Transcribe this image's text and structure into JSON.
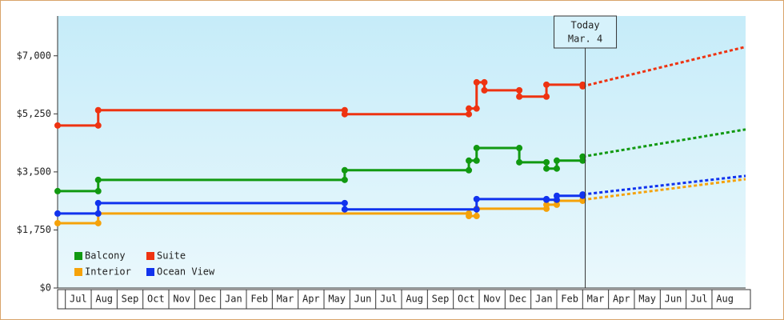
{
  "chart_data": {
    "type": "step-line",
    "ylim": [
      0,
      8200
    ],
    "yticks": [
      {
        "value": 0,
        "label": "$0"
      },
      {
        "value": 1750,
        "label": "$1,750"
      },
      {
        "value": 3500,
        "label": "$3,500"
      },
      {
        "value": 5250,
        "label": "$5,250"
      },
      {
        "value": 7000,
        "label": "$7,000"
      }
    ],
    "xlim": [
      -0.3,
      26.3
    ],
    "xticks": [
      {
        "value": 0.5,
        "label": "Jul"
      },
      {
        "value": 1.5,
        "label": "Aug"
      },
      {
        "value": 2.5,
        "label": "Sep"
      },
      {
        "value": 3.5,
        "label": "Oct"
      },
      {
        "value": 4.5,
        "label": "Nov"
      },
      {
        "value": 5.5,
        "label": "Dec"
      },
      {
        "value": 6.5,
        "label": "Jan"
      },
      {
        "value": 7.5,
        "label": "Feb"
      },
      {
        "value": 8.5,
        "label": "Mar"
      },
      {
        "value": 9.5,
        "label": "Apr"
      },
      {
        "value": 10.5,
        "label": "May"
      },
      {
        "value": 11.5,
        "label": "Jun"
      },
      {
        "value": 12.5,
        "label": "Jul"
      },
      {
        "value": 13.5,
        "label": "Aug"
      },
      {
        "value": 14.5,
        "label": "Sep"
      },
      {
        "value": 15.5,
        "label": "Oct"
      },
      {
        "value": 16.5,
        "label": "Nov"
      },
      {
        "value": 17.5,
        "label": "Dec"
      },
      {
        "value": 18.5,
        "label": "Jan"
      },
      {
        "value": 19.5,
        "label": "Feb"
      },
      {
        "value": 20.5,
        "label": "Mar"
      },
      {
        "value": 21.5,
        "label": "Apr"
      },
      {
        "value": 22.5,
        "label": "May"
      },
      {
        "value": 23.5,
        "label": "Jun"
      },
      {
        "value": 24.5,
        "label": "Jul"
      },
      {
        "value": 25.5,
        "label": "Aug"
      }
    ],
    "today": {
      "x": 20.1,
      "label": [
        "Today",
        "Mar. 4"
      ]
    },
    "series": [
      {
        "name": "Balcony",
        "color": "#119911",
        "x": [
          -0.3,
          1.27,
          10.8,
          15.6,
          15.9,
          17.55,
          18.6,
          19.0,
          20.0
        ],
        "values": [
          2920,
          3260,
          3550,
          3840,
          4220,
          3790,
          3600,
          3840,
          3960
        ],
        "forecast": {
          "x": [
            20.0,
            26.3
          ],
          "values": [
            3960,
            4780
          ]
        }
      },
      {
        "name": "Suite",
        "color": "#ee3311",
        "x": [
          -0.3,
          1.27,
          10.8,
          15.6,
          15.9,
          16.2,
          17.55,
          18.6,
          20.0
        ],
        "values": [
          4900,
          5360,
          5240,
          5410,
          6200,
          5960,
          5770,
          6130,
          6080
        ],
        "forecast": {
          "x": [
            20.0,
            26.3
          ],
          "values": [
            6080,
            7270
          ]
        }
      },
      {
        "name": "Interior",
        "color": "#f5a20a",
        "x": [
          -0.3,
          1.27,
          15.6,
          15.9,
          18.6,
          19.0,
          20.0
        ],
        "values": [
          1955,
          2245,
          2170,
          2390,
          2510,
          2630,
          2660
        ],
        "forecast": {
          "x": [
            20.0,
            26.3
          ],
          "values": [
            2660,
            3280
          ]
        }
      },
      {
        "name": "Ocean View",
        "color": "#1133ee",
        "x": [
          -0.3,
          1.27,
          10.8,
          15.9,
          18.6,
          19.0,
          20.0
        ],
        "values": [
          2245,
          2560,
          2370,
          2680,
          2660,
          2780,
          2820
        ],
        "forecast": {
          "x": [
            20.0,
            26.3
          ],
          "values": [
            2820,
            3380
          ]
        }
      }
    ]
  }
}
